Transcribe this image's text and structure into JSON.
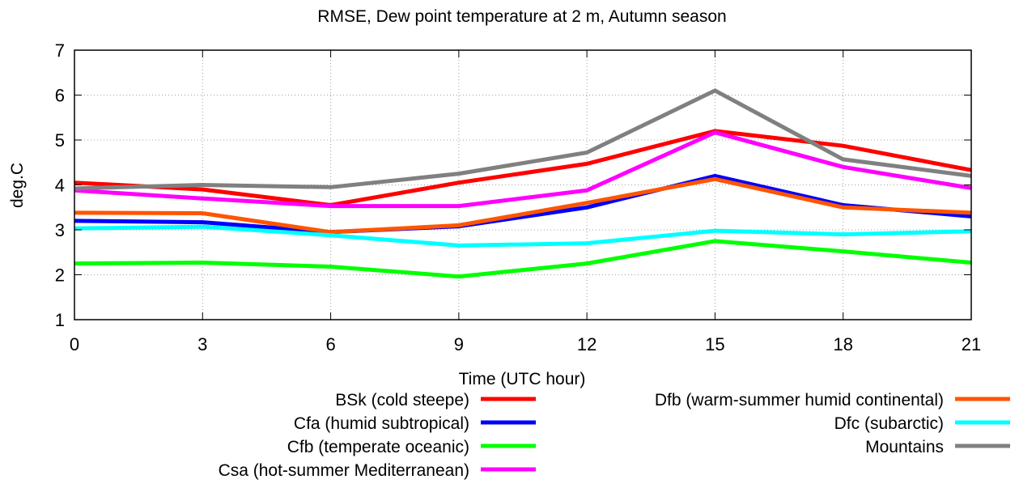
{
  "chart_data": {
    "type": "line",
    "title": "RMSE, Dew point temperature at 2 m, Autumn season",
    "xlabel": "Time (UTC hour)",
    "ylabel": "deg.C",
    "x": [
      0,
      3,
      6,
      9,
      12,
      15,
      18,
      21
    ],
    "xlim": [
      0,
      21
    ],
    "ylim": [
      1,
      7
    ],
    "xticks": [
      "0",
      "3",
      "6",
      "9",
      "12",
      "15",
      "18",
      "21"
    ],
    "yticks": [
      "1",
      "2",
      "3",
      "4",
      "5",
      "6",
      "7"
    ],
    "grid": true,
    "legend_position": "below",
    "series": [
      {
        "name": "BSk (cold steepe)",
        "color": "#ff0000",
        "values": [
          4.05,
          3.9,
          3.55,
          4.05,
          4.47,
          5.2,
          4.87,
          4.33
        ]
      },
      {
        "name": "Cfa (humid subtropical)",
        "color": "#0000ff",
        "values": [
          3.2,
          3.17,
          2.95,
          3.08,
          3.5,
          4.2,
          3.55,
          3.3
        ]
      },
      {
        "name": "Cfb (temperate oceanic)",
        "color": "#00ff00",
        "values": [
          2.25,
          2.27,
          2.18,
          1.96,
          2.25,
          2.75,
          2.52,
          2.27
        ]
      },
      {
        "name": "Csa (hot-summer Mediterranean)",
        "color": "#ff00ff",
        "values": [
          3.88,
          3.7,
          3.53,
          3.53,
          3.88,
          5.17,
          4.4,
          3.93
        ]
      },
      {
        "name": "Dfb (warm-summer humid continental)",
        "color": "#ff5500",
        "values": [
          3.38,
          3.37,
          2.95,
          3.1,
          3.6,
          4.13,
          3.5,
          3.38
        ]
      },
      {
        "name": "Dfc (subarctic)",
        "color": "#00ffff",
        "values": [
          3.03,
          3.07,
          2.88,
          2.65,
          2.7,
          2.98,
          2.9,
          2.97
        ]
      },
      {
        "name": "Mountains",
        "color": "#808080",
        "values": [
          3.92,
          4.0,
          3.95,
          4.25,
          4.72,
          6.1,
          4.57,
          4.2
        ]
      }
    ]
  }
}
